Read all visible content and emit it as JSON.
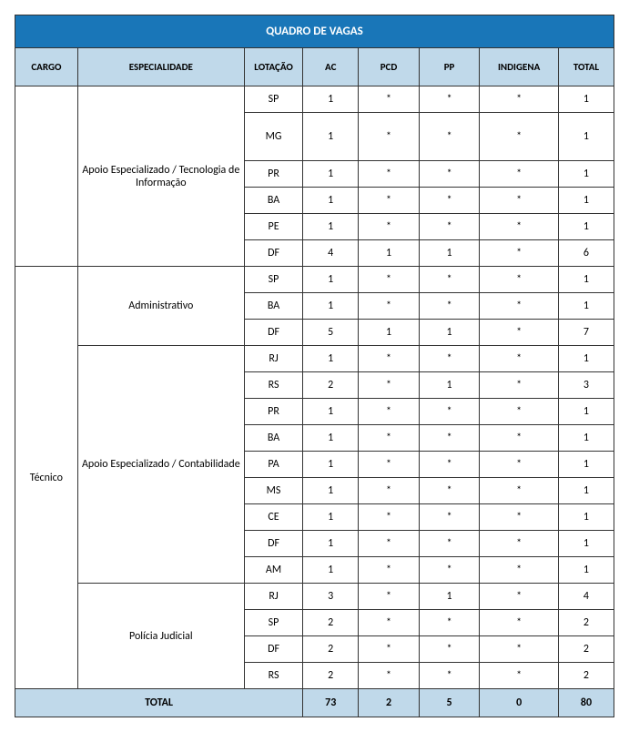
{
  "title": "QUADRO DE VAGAS",
  "columns": [
    "CARGO",
    "ESPECIALIDADE",
    "LOTAÇÃO",
    "AC",
    "PCD",
    "PP",
    "INDIGENA",
    "TOTAL"
  ],
  "cargo_label": "Técnico",
  "especialidades": {
    "ti": "Apoio Especializado / Tecnologia de Informação",
    "adm": "Administrativo",
    "cont": "Apoio Especializado / Contabilidade",
    "pol": "Polícia Judicial"
  },
  "rows": {
    "ti": [
      {
        "lot": "SP",
        "ac": "1",
        "pcd": "*",
        "pp": "*",
        "ind": "*",
        "total": "1"
      },
      {
        "lot": "MG",
        "ac": "1",
        "pcd": "*",
        "pp": "*",
        "ind": "*",
        "total": "1"
      },
      {
        "lot": "PR",
        "ac": "1",
        "pcd": "*",
        "pp": "*",
        "ind": "*",
        "total": "1"
      },
      {
        "lot": "BA",
        "ac": "1",
        "pcd": "*",
        "pp": "*",
        "ind": "*",
        "total": "1"
      },
      {
        "lot": "PE",
        "ac": "1",
        "pcd": "*",
        "pp": "*",
        "ind": "*",
        "total": "1"
      },
      {
        "lot": "DF",
        "ac": "4",
        "pcd": "1",
        "pp": "1",
        "ind": "*",
        "total": "6"
      }
    ],
    "adm": [
      {
        "lot": "SP",
        "ac": "1",
        "pcd": "*",
        "pp": "*",
        "ind": "*",
        "total": "1"
      },
      {
        "lot": "BA",
        "ac": "1",
        "pcd": "*",
        "pp": "*",
        "ind": "*",
        "total": "1"
      },
      {
        "lot": "DF",
        "ac": "5",
        "pcd": "1",
        "pp": "1",
        "ind": "*",
        "total": "7"
      }
    ],
    "cont": [
      {
        "lot": "RJ",
        "ac": "1",
        "pcd": "*",
        "pp": "*",
        "ind": "*",
        "total": "1"
      },
      {
        "lot": "RS",
        "ac": "2",
        "pcd": "*",
        "pp": "1",
        "ind": "*",
        "total": "3"
      },
      {
        "lot": "PR",
        "ac": "1",
        "pcd": "*",
        "pp": "*",
        "ind": "*",
        "total": "1"
      },
      {
        "lot": "BA",
        "ac": "1",
        "pcd": "*",
        "pp": "*",
        "ind": "*",
        "total": "1"
      },
      {
        "lot": "PA",
        "ac": "1",
        "pcd": "*",
        "pp": "*",
        "ind": "*",
        "total": "1"
      },
      {
        "lot": "MS",
        "ac": "1",
        "pcd": "*",
        "pp": "*",
        "ind": "*",
        "total": "1"
      },
      {
        "lot": "CE",
        "ac": "1",
        "pcd": "*",
        "pp": "*",
        "ind": "*",
        "total": "1"
      },
      {
        "lot": "DF",
        "ac": "1",
        "pcd": "*",
        "pp": "*",
        "ind": "*",
        "total": "1"
      },
      {
        "lot": "AM",
        "ac": "1",
        "pcd": "*",
        "pp": "*",
        "ind": "*",
        "total": "1"
      }
    ],
    "pol": [
      {
        "lot": "RJ",
        "ac": "3",
        "pcd": "*",
        "pp": "1",
        "ind": "*",
        "total": "4"
      },
      {
        "lot": "SP",
        "ac": "2",
        "pcd": "*",
        "pp": "*",
        "ind": "*",
        "total": "2"
      },
      {
        "lot": "DF",
        "ac": "2",
        "pcd": "*",
        "pp": "*",
        "ind": "*",
        "total": "2"
      },
      {
        "lot": "RS",
        "ac": "2",
        "pcd": "*",
        "pp": "*",
        "ind": "*",
        "total": "2"
      }
    ]
  },
  "totals": {
    "label": "TOTAL",
    "ac": "73",
    "pcd": "2",
    "pp": "5",
    "ind": "0",
    "total": "80"
  },
  "colors": {
    "title_bg": "#1976b8",
    "title_fg": "#ffffff",
    "header_bg": "#c0d9ea",
    "header_fg": "#000000",
    "border": "#333333",
    "body_bg": "#ffffff"
  }
}
